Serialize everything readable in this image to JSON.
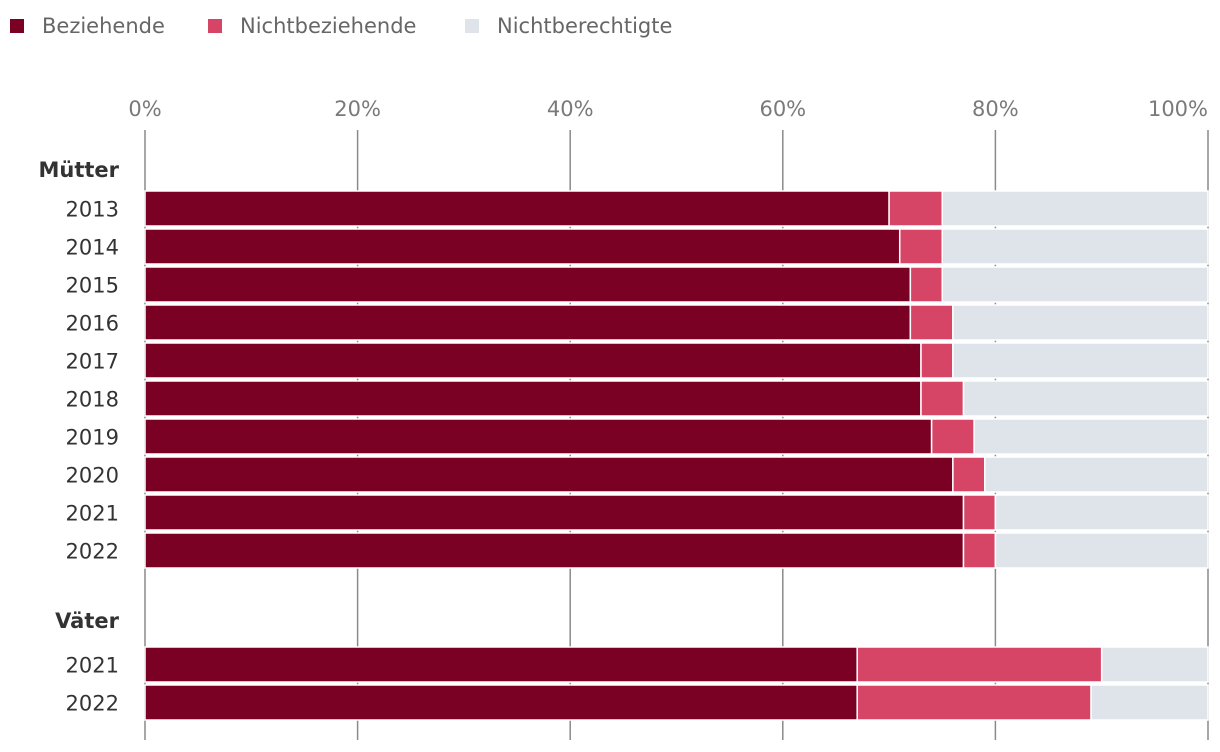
{
  "chart_data": {
    "type": "bar",
    "orientation": "horizontal",
    "stacked": true,
    "legend_position": "top-left",
    "grid": true,
    "xlim": [
      0,
      100
    ],
    "x_ticks": [
      "0%",
      "20%",
      "40%",
      "60%",
      "80%",
      "100%"
    ],
    "series": [
      {
        "name": "Beziehende",
        "color": "#7a0024"
      },
      {
        "name": "Nichtbeziehende",
        "color": "#d64566"
      },
      {
        "name": "Nichtberechtigte",
        "color": "#dfe4ea"
      }
    ],
    "groups": [
      {
        "label": "Mütter",
        "rows": [
          {
            "category": "2013",
            "values": [
              70,
              5,
              25
            ]
          },
          {
            "category": "2014",
            "values": [
              71,
              4,
              25
            ]
          },
          {
            "category": "2015",
            "values": [
              72,
              3,
              25
            ]
          },
          {
            "category": "2016",
            "values": [
              72,
              4,
              24
            ]
          },
          {
            "category": "2017",
            "values": [
              73,
              3,
              24
            ]
          },
          {
            "category": "2018",
            "values": [
              73,
              4,
              23
            ]
          },
          {
            "category": "2019",
            "values": [
              74,
              4,
              22
            ]
          },
          {
            "category": "2020",
            "values": [
              76,
              3,
              21
            ]
          },
          {
            "category": "2021",
            "values": [
              77,
              3,
              20
            ]
          },
          {
            "category": "2022",
            "values": [
              77,
              3,
              20
            ]
          }
        ]
      },
      {
        "label": "Väter",
        "rows": [
          {
            "category": "2021",
            "values": [
              67,
              23,
              10
            ]
          },
          {
            "category": "2022",
            "values": [
              67,
              22,
              11
            ]
          }
        ]
      }
    ]
  }
}
